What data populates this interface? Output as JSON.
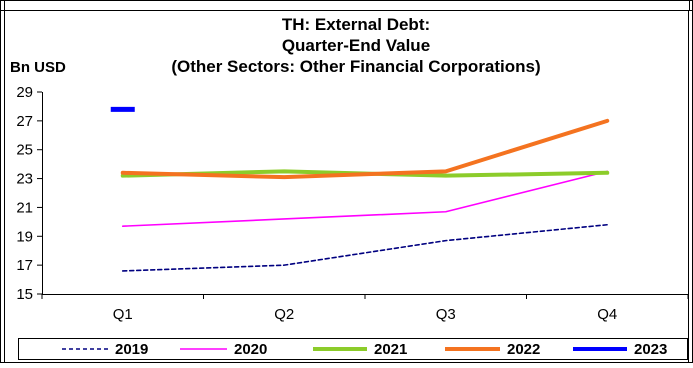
{
  "chart_data": {
    "type": "line",
    "title_lines": [
      "TH: External Debt:",
      "Quarter-End Value",
      "(Other Sectors: Other Financial Corporations)"
    ],
    "ylabel": "Bn USD",
    "xlabel": "",
    "categories": [
      "Q1",
      "Q2",
      "Q3",
      "Q4"
    ],
    "ylim": [
      15,
      29
    ],
    "yticks": [
      15,
      17,
      19,
      21,
      23,
      25,
      27,
      29
    ],
    "grid": false,
    "legend_position": "bottom",
    "series": [
      {
        "name": "2019",
        "values": [
          16.6,
          17.0,
          18.7,
          19.8
        ],
        "color": "#000080",
        "style": "dashed"
      },
      {
        "name": "2020",
        "values": [
          19.7,
          20.2,
          20.7,
          23.5
        ],
        "color": "#ff00ff",
        "style": "solid"
      },
      {
        "name": "2021",
        "values": [
          23.2,
          23.5,
          23.2,
          23.4
        ],
        "color": "#8ccc2a",
        "style": "solid"
      },
      {
        "name": "2022",
        "values": [
          23.4,
          23.1,
          23.5,
          27.0
        ],
        "color": "#f47320",
        "style": "solid"
      },
      {
        "name": "2023",
        "values": [
          27.8,
          null,
          null,
          null
        ],
        "color": "#0000ff",
        "style": "solid"
      }
    ]
  }
}
